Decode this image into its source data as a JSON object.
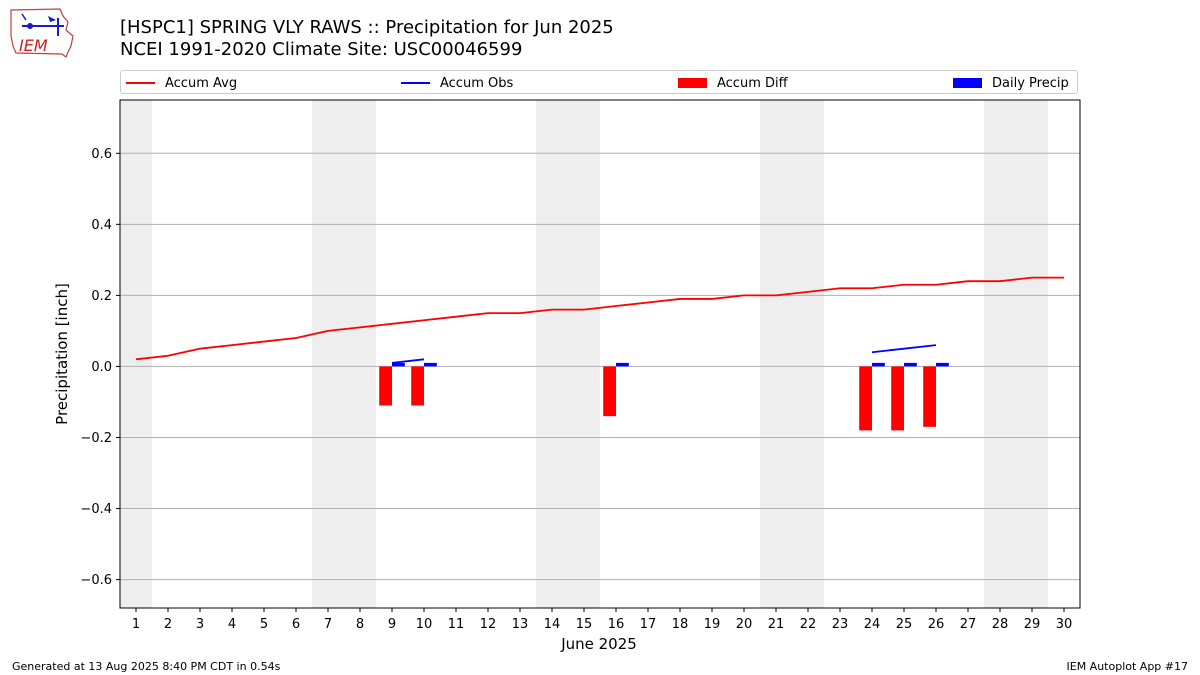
{
  "header": {
    "title_line1": "[HSPC1] SPRING VLY RAWS :: Precipitation for Jun 2025",
    "title_line2": "NCEI 1991-2020 Climate Site: USC00046599",
    "logo_text": "IEM"
  },
  "footer": {
    "generated": "Generated at 13 Aug 2025 8:40 PM CDT in 0.54s",
    "app": "IEM Autoplot App #17"
  },
  "legend": {
    "accum_avg": "Accum Avg",
    "accum_obs": "Accum Obs",
    "accum_diff": "Accum Diff",
    "daily_precip": "Daily Precip"
  },
  "colors": {
    "accum_avg": "#ff0000",
    "accum_obs": "#0000ff",
    "accum_diff": "#ff0000",
    "daily_precip": "#0000ff",
    "weekend_shade": "#eeeeee",
    "grid": "#b0b0b0"
  },
  "chart_data": {
    "type": "bar",
    "xlabel": "June 2025",
    "ylabel": "Precipitation [inch]",
    "xlim": [
      0.5,
      30.5
    ],
    "ylim": [
      -0.68,
      0.75
    ],
    "yticks": [
      -0.6,
      -0.4,
      -0.2,
      0.0,
      0.2,
      0.4,
      0.6
    ],
    "ytick_labels": [
      "−0.6",
      "−0.4",
      "−0.2",
      "0.0",
      "0.2",
      "0.4",
      "0.6"
    ],
    "xticks": [
      1,
      2,
      3,
      4,
      5,
      6,
      7,
      8,
      9,
      10,
      11,
      12,
      13,
      14,
      15,
      16,
      17,
      18,
      19,
      20,
      21,
      22,
      23,
      24,
      25,
      26,
      27,
      28,
      29,
      30
    ],
    "grid": "horizontal",
    "legend_placement": "top",
    "weekend_days": [
      1,
      7,
      8,
      14,
      15,
      21,
      22,
      28,
      29
    ],
    "series": [
      {
        "name": "Accum Avg",
        "kind": "line",
        "x": [
          1,
          2,
          3,
          4,
          5,
          6,
          7,
          8,
          9,
          10,
          11,
          12,
          13,
          14,
          15,
          16,
          17,
          18,
          19,
          20,
          21,
          22,
          23,
          24,
          25,
          26,
          27,
          28,
          29,
          30
        ],
        "values": [
          0.02,
          0.03,
          0.05,
          0.06,
          0.07,
          0.08,
          0.1,
          0.11,
          0.12,
          0.13,
          0.14,
          0.15,
          0.15,
          0.16,
          0.16,
          0.17,
          0.18,
          0.19,
          0.19,
          0.2,
          0.2,
          0.21,
          0.22,
          0.22,
          0.23,
          0.23,
          0.24,
          0.24,
          0.25,
          0.25
        ]
      },
      {
        "name": "Accum Obs",
        "kind": "line",
        "segments": [
          {
            "x": [
              9,
              10
            ],
            "values": [
              0.01,
              0.02
            ]
          },
          {
            "x": [
              24,
              25,
              26
            ],
            "values": [
              0.04,
              0.05,
              0.06
            ]
          }
        ]
      },
      {
        "name": "Accum Diff",
        "kind": "bar",
        "x": [
          9,
          10,
          16,
          24,
          25,
          26
        ],
        "values": [
          -0.11,
          -0.11,
          -0.14,
          -0.18,
          -0.18,
          -0.17
        ]
      },
      {
        "name": "Daily Precip",
        "kind": "bar",
        "x": [
          9,
          10,
          16,
          24,
          25,
          26
        ],
        "values": [
          0.01,
          0.01,
          0.01,
          0.01,
          0.01,
          0.01
        ]
      }
    ]
  }
}
